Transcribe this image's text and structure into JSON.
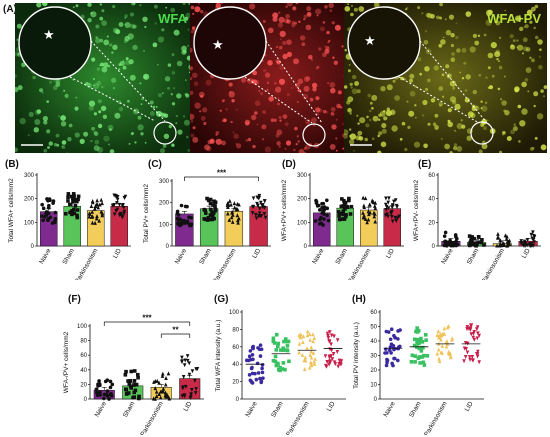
{
  "figure": {
    "label": "(A)",
    "micrographs": [
      {
        "key": "wfa",
        "label": "WFA",
        "label_color": "#4cd94c"
      },
      {
        "key": "pv",
        "label": "PV",
        "label_color": "#ff3b3b"
      },
      {
        "key": "merge",
        "label": "WFA+PV",
        "label_color": "#b8e23a"
      }
    ],
    "star": "★",
    "colors": {
      "naive": "#7e2a8f",
      "sham": "#58c45a",
      "parkinsonism": "#f2cd5a",
      "lid": "#c72b48",
      "naive_dot": "#3a2aa0",
      "sham_dot": "#39c060",
      "park_dot": "#efc35a",
      "lid_dot": "#c81f4a"
    }
  },
  "chart_data": [
    {
      "panel": "(B)",
      "type": "bar",
      "categories": [
        "Naive",
        "Sham",
        "Parkinsonism",
        "LID"
      ],
      "values": [
        145,
        168,
        150,
        168
      ],
      "ylabel": "Total WFA+ cells/mm2",
      "ylim": [
        0,
        300
      ],
      "yticks": [
        0,
        100,
        200,
        300
      ],
      "sig": []
    },
    {
      "panel": "(C)",
      "type": "bar",
      "categories": [
        "Naive",
        "Sham",
        "Parkinsonism",
        "LID"
      ],
      "values": [
        148,
        172,
        160,
        182
      ],
      "ylabel": "Total PV+ cells/mm2",
      "ylim": [
        0,
        300
      ],
      "yticks": [
        0,
        100,
        200,
        300
      ],
      "sig": [
        {
          "from": 0,
          "to": 3,
          "label": "***"
        }
      ]
    },
    {
      "panel": "(D)",
      "type": "bar",
      "categories": [
        "Naive",
        "Sham",
        "Parkinsonism",
        "LID"
      ],
      "values": [
        140,
        160,
        152,
        158
      ],
      "ylabel": "WFA+PV+ cells/mm2",
      "ylim": [
        0,
        300
      ],
      "yticks": [
        0,
        100,
        200,
        300
      ],
      "sig": []
    },
    {
      "panel": "(E)",
      "type": "bar",
      "categories": [
        "Naive",
        "Sham",
        "Parkinsonism",
        "LID"
      ],
      "values": [
        4,
        3,
        2,
        4
      ],
      "ylabel": "WFA+/PV- cells/mm2",
      "ylim": [
        0,
        60
      ],
      "yticks": [
        0,
        20,
        40,
        60
      ],
      "sig": []
    },
    {
      "panel": "(F)",
      "type": "bar",
      "categories": [
        "Naive",
        "Sham",
        "Parkinsonism",
        "LID"
      ],
      "values": [
        12,
        18,
        16,
        28
      ],
      "ylabel": "WFA-/PV+ cells/mm2",
      "ylim": [
        0,
        100
      ],
      "yticks": [
        0,
        20,
        40,
        60,
        80,
        100
      ],
      "sig": [
        {
          "from": 0,
          "to": 3,
          "label": "***"
        },
        {
          "from": 2,
          "to": 3,
          "label": "**"
        }
      ]
    },
    {
      "panel": "(G)",
      "type": "scatter",
      "categories": [
        "Naive",
        "Sham",
        "Parkinsonism",
        "LID"
      ],
      "values": [
        40,
        52,
        56,
        58
      ],
      "ylabel": "Total WFA intensity (a.u.)",
      "ylim": [
        0,
        100
      ],
      "yticks": [
        0,
        20,
        40,
        60,
        80,
        100
      ],
      "sig": []
    },
    {
      "panel": "(H)",
      "type": "scatter",
      "categories": [
        "Naive",
        "Sham",
        "Parkinsonism",
        "LID"
      ],
      "values": [
        35,
        36,
        38,
        38
      ],
      "ylabel": "Total PV intensity (a.u.)",
      "ylim": [
        0,
        60
      ],
      "yticks": [
        0,
        10,
        20,
        30,
        40,
        50,
        60
      ],
      "sig": []
    }
  ]
}
